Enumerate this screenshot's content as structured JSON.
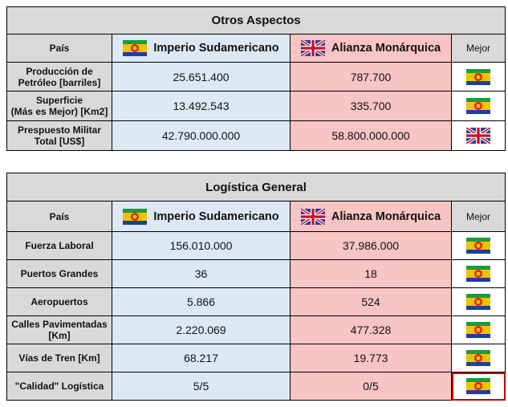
{
  "table1": {
    "title": "Otros Aspectos",
    "header": {
      "label": "País",
      "team_a": "Imperio Sudamericano",
      "team_b": "Alianza Monárquica",
      "best": "Mejor"
    },
    "rows": [
      {
        "label_line1": "Producción de",
        "label_line2": "Petróleo [barriles]",
        "a": "25.651.400",
        "b": "787.700",
        "best_icon": "imperio-flag-icon"
      },
      {
        "label_line1": "Superficie",
        "label_line2": "(Más es Mejor) [Km2]",
        "a": "13.492.543",
        "b": "335.700",
        "best_icon": "imperio-flag-icon"
      },
      {
        "label_line1": "Prespuesto Militar",
        "label_line2": "Total [US$]",
        "a": "42.790.000.000",
        "b": "58.800.000.000",
        "best_icon": "alianza-flag-icon"
      }
    ]
  },
  "table2": {
    "title": "Logística General",
    "header": {
      "label": "País",
      "team_a": "Imperio Sudamericano",
      "team_b": "Alianza Monárquica",
      "best": "Mejor"
    },
    "rows": [
      {
        "label_line1": "Fuerza Laboral",
        "label_line2": "",
        "a": "156.010.000",
        "b": "37.986.000",
        "best_icon": "imperio-flag-icon"
      },
      {
        "label_line1": "Puertos Grandes",
        "label_line2": "",
        "a": "36",
        "b": "18",
        "best_icon": "imperio-flag-icon"
      },
      {
        "label_line1": "Aeropuertos",
        "label_line2": "",
        "a": "5.866",
        "b": "524",
        "best_icon": "imperio-flag-icon"
      },
      {
        "label_line1": "Calles Pavimentadas",
        "label_line2": "[Km]",
        "a": "2.220.069",
        "b": "477.328",
        "best_icon": "imperio-flag-icon"
      },
      {
        "label_line1": "Vías de Tren [Km]",
        "label_line2": "",
        "a": "68.217",
        "b": "19.773",
        "best_icon": "imperio-flag-icon"
      },
      {
        "label_line1": "\"Calidad\" Logística",
        "label_line2": "",
        "a": "5/5",
        "b": "0/5",
        "best_icon": "imperio-flag-icon",
        "highlighted": true
      }
    ]
  },
  "colors": {
    "team_a_bg": "#dce9f5",
    "team_b_bg": "#f8c4c4",
    "header_bg": "#d9d9d9",
    "highlight": "#c00000"
  }
}
